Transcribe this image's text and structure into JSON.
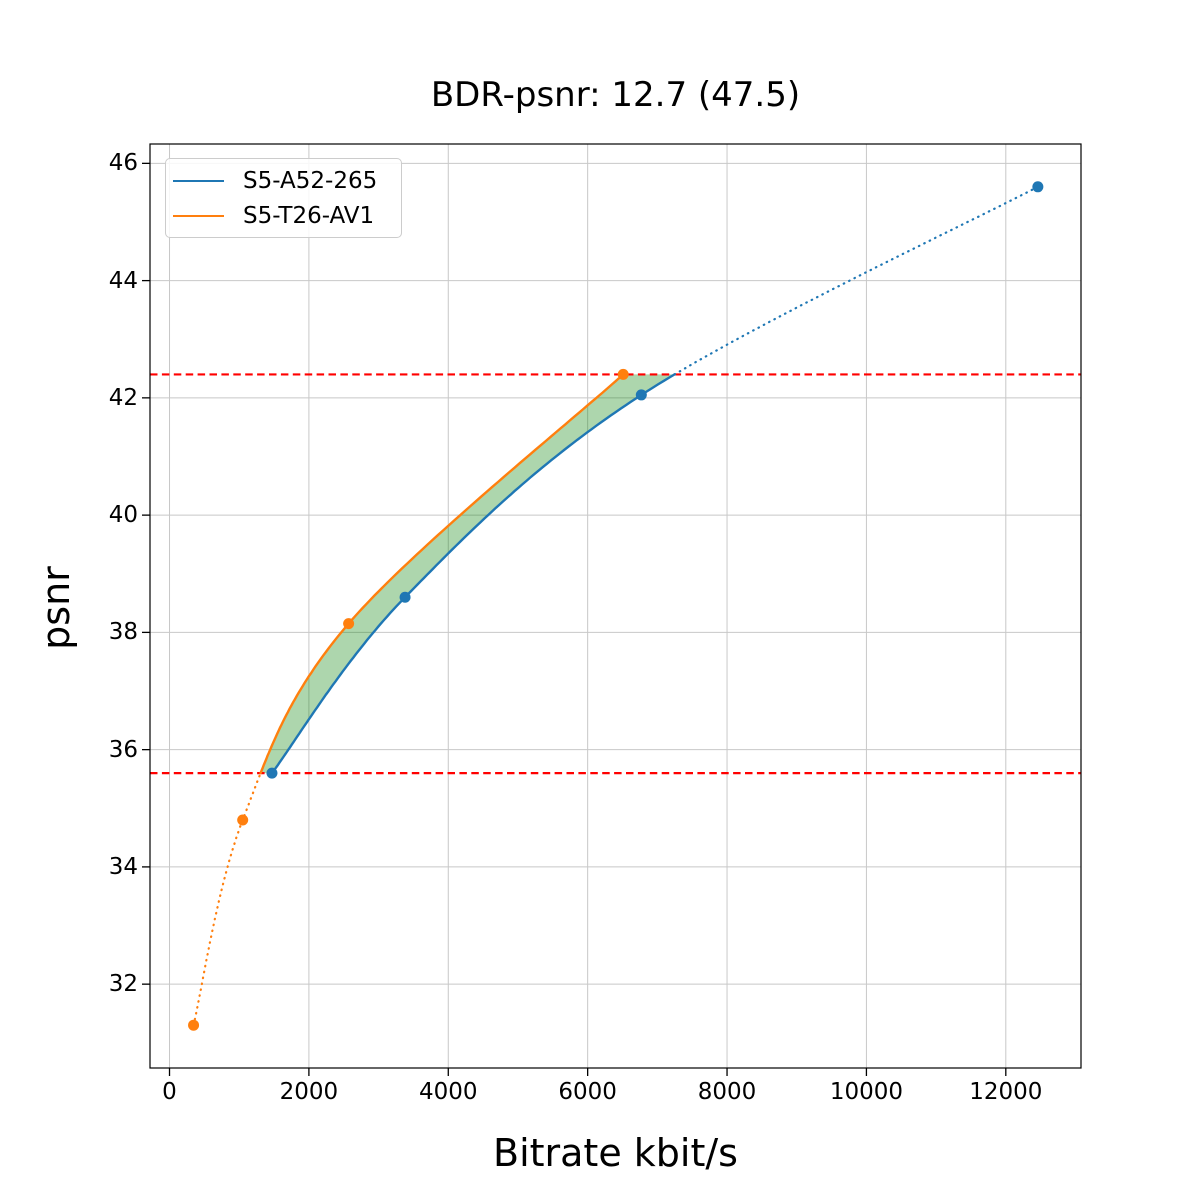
{
  "chart_data": {
    "type": "line",
    "title": "BDR-psnr: 12.7 (47.5)",
    "xlabel": "Bitrate kbit/s",
    "ylabel": "psnr",
    "xlim": [
      -280,
      13079
    ],
    "ylim": [
      30.57,
      46.33
    ],
    "x_ticks": [
      0,
      2000,
      4000,
      6000,
      8000,
      10000,
      12000
    ],
    "y_ticks": [
      32,
      34,
      36,
      38,
      40,
      42,
      44,
      46
    ],
    "grid": true,
    "grid_color": "#c8c8c8",
    "legend_position": "upper left",
    "series": [
      {
        "name": "S5-A52-265",
        "color": "#1f77b4",
        "points": [
          [
            1470,
            35.6
          ],
          [
            3380,
            38.6
          ],
          [
            6770,
            42.05
          ],
          [
            12460,
            45.6
          ]
        ]
      },
      {
        "name": "S5-T26-AV1",
        "color": "#ff7f0e",
        "points": [
          [
            345,
            31.3
          ],
          [
            1050,
            34.8
          ],
          [
            2570,
            38.15
          ],
          [
            6510,
            42.4
          ]
        ]
      }
    ],
    "overlap_lines": {
      "style": "dashed",
      "color": "#ff0000",
      "values": [
        35.6,
        42.4
      ]
    },
    "fill_between": {
      "color": "rgba(0,128,0,0.32)",
      "psnr_range": [
        35.6,
        42.4
      ]
    }
  }
}
